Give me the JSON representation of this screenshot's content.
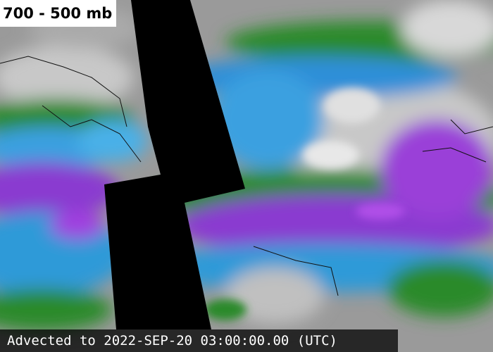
{
  "map": {
    "title": "700 - 500 mb",
    "timestamp": "Advected to 2022-SEP-20 03:00:00.00 (UTC)"
  }
}
